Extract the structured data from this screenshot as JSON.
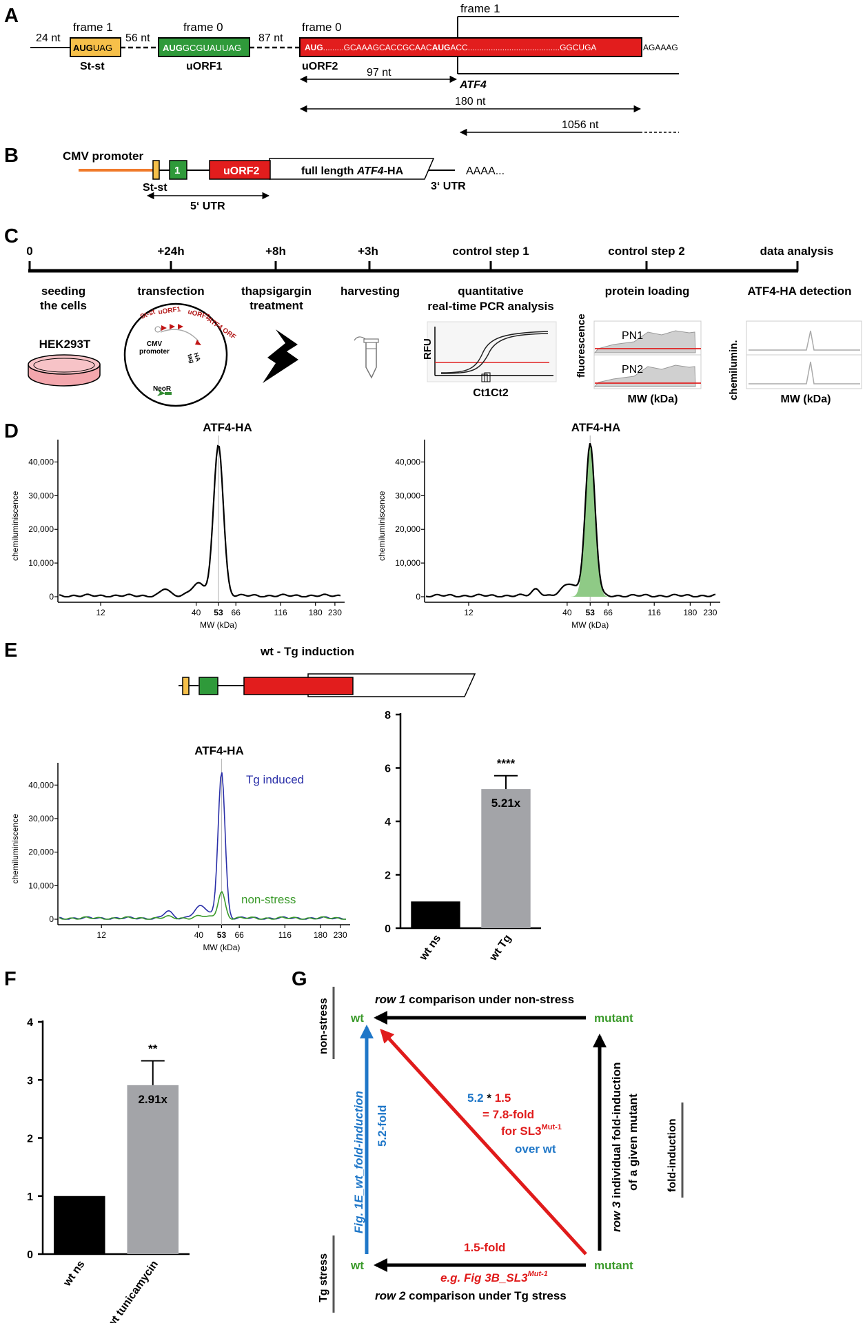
{
  "panels": {
    "a": "A",
    "b": "B",
    "c": "C",
    "d": "D",
    "e": "E",
    "f": "F",
    "g": "G"
  },
  "panel_a": {
    "frame_stst": "frame 1",
    "frame_uorf1": "frame 0",
    "frame_uorf2": "frame 0",
    "frame_atf4": "frame 1",
    "gap1": "24 nt",
    "gap2": "56 nt",
    "gap3": "87 nt",
    "stst_seq_bold": "AUG",
    "stst_seq_rest": "UAG",
    "stst_label": "St-st",
    "uorf1_seq_bold": "AUG",
    "uorf1_seq_rest": "GCGUAUUAG",
    "uorf1_label": "uORF1",
    "uorf2_seq_1": "AUG",
    "uorf2_seq_2": ".........GCAAAGCACCGCAAC",
    "uorf2_seq_3": "AUG",
    "uorf2_seq_4": "ACC........................................GGCUGA",
    "after_seq": "AGAAAG",
    "uorf2_label": "uORF2",
    "atf4_label": "ATF4",
    "len1": "97 nt",
    "len2": "180 nt",
    "len3": "1056 nt"
  },
  "panel_b": {
    "promoter": "CMV promoter",
    "uorf1_num": "1",
    "uorf2": "uORF2",
    "full_prefix": "full length ",
    "full_italic": "ATF4",
    "full_suffix": "-HA",
    "polya": "AAAA...",
    "stst": "St-st",
    "utr5": "5‘ UTR",
    "utr3": "3‘ UTR"
  },
  "panel_c": {
    "times": [
      "0",
      "+24h",
      "+8h",
      "+3h",
      "control step 1",
      "control step 2",
      "data analysis"
    ],
    "steps": [
      "seeding",
      "the cells",
      "transfection",
      "thapsigargin",
      "treatment",
      "harvesting",
      "quantitative",
      "real-time PCR analysis",
      "protein loading",
      "ATF4-HA detection"
    ],
    "cell_line": "HEK293T",
    "plasmid_labels": [
      "St-st",
      "uORF1",
      "uORF2",
      "ATF4 ORF",
      "CMV",
      "promoter",
      "HA",
      "tag",
      "NeoR"
    ],
    "rfu": "RFU",
    "ct_label": "Ct1Ct2",
    "fluor": "fluorescence",
    "pn1": "PN1",
    "pn2": "PN2",
    "mw": "MW (kDa)",
    "chemi": "chemilumin."
  },
  "panel_d": {
    "title": "ATF4-HA",
    "ylabel": "chemiluminiscence",
    "xlabel": "MW (kDa)",
    "yticks": [
      "0",
      "10,000",
      "20,000",
      "30,000",
      "40,000"
    ],
    "xticks": [
      "12",
      "40",
      "53",
      "66",
      "116",
      "180",
      "230"
    ]
  },
  "panel_e": {
    "title": "wt - Tg induction",
    "trace_title": "ATF4-HA",
    "tg_label": "Tg induced",
    "ns_label": "non-stress",
    "ylabel": "chemiluminiscence",
    "xlabel": "MW (kDa)",
    "yticks": [
      "0",
      "10,000",
      "20,000",
      "30,000",
      "40,000"
    ],
    "xticks": [
      "12",
      "40",
      "53",
      "66",
      "116",
      "180",
      "230"
    ],
    "bar_yticks": [
      "0",
      "2",
      "4",
      "6",
      "8"
    ],
    "bar_fold": "5.21x",
    "bar_sig": "****"
  },
  "panel_f": {
    "yticks": [
      "0",
      "1",
      "2",
      "3",
      "4"
    ],
    "bar_fold": "2.91x",
    "bar_sig": "**"
  },
  "panel_g": {
    "row1_it": "row 1",
    "row1_rest": " comparison under non-stress",
    "row2_it": "row 2",
    "row2_rest": " comparison under Tg stress",
    "wt": "wt",
    "mutant": "mutant",
    "nonstress": "non-stress",
    "tgstress": "Tg stress",
    "foldind": "fold-induction",
    "fig1e": "Fig. 1E_wt_fold-induction",
    "fold52": "5.2-fold",
    "row3_it": "row 3",
    "row3_rest": " individual fold-induction",
    "row3_l2": "of a given mutant",
    "eq_a": "5.2",
    "eq_b": " * ",
    "eq_c": "1.5",
    "eq2": "= 7.8-fold",
    "eq3": "for SL3",
    "eq3_sup": "Mut-1",
    "eq4": "over wt",
    "fold15": "1.5-fold",
    "eg": "e.g. Fig 3B_SL3",
    "eg_sup": "Mut-1"
  },
  "chart_data": [
    {
      "type": "line",
      "title": "ATF4-HA",
      "xlabel": "MW (kDa)",
      "ylabel": "chemiluminiscence",
      "ylim": [
        0,
        45000
      ],
      "x_ticks": [
        12,
        40,
        53,
        66,
        116,
        180,
        230
      ],
      "series": [
        {
          "peak_mw": 53,
          "peak_value": 45000
        }
      ]
    },
    {
      "type": "area",
      "title": "ATF4-HA",
      "xlabel": "MW (kDa)",
      "ylabel": "chemiluminiscence",
      "ylim": [
        0,
        45000
      ],
      "x_ticks": [
        12,
        40,
        53,
        66,
        116,
        180,
        230
      ],
      "series": [
        {
          "peak_mw": 53,
          "peak_value": 45000,
          "fill": "#8fca86"
        }
      ]
    },
    {
      "type": "line",
      "title": "ATF4-HA",
      "xlabel": "MW (kDa)",
      "ylabel": "chemiluminiscence",
      "ylim": [
        0,
        45000
      ],
      "x_ticks": [
        12,
        40,
        53,
        66,
        116,
        180,
        230
      ],
      "series": [
        {
          "name": "Tg induced",
          "color": "#2a2fa8",
          "peak_mw": 53,
          "peak_value": 44000
        },
        {
          "name": "non-stress",
          "color": "#3a9a2a",
          "peak_mw": 53,
          "peak_value": 8000
        }
      ]
    },
    {
      "type": "bar",
      "categories": [
        "wt ns",
        "wt Tg"
      ],
      "values": [
        1.0,
        5.21
      ],
      "error": [
        0,
        0.5
      ],
      "ylim": [
        0,
        8
      ],
      "colors": [
        "#000000",
        "#a3a4a8"
      ],
      "annotation": "****"
    },
    {
      "type": "bar",
      "categories": [
        "wt ns",
        "wt tunicamycin"
      ],
      "values": [
        1.0,
        2.91
      ],
      "error": [
        0,
        0.42
      ],
      "ylim": [
        0,
        4
      ],
      "colors": [
        "#000000",
        "#a3a4a8"
      ],
      "annotation": "**"
    }
  ]
}
